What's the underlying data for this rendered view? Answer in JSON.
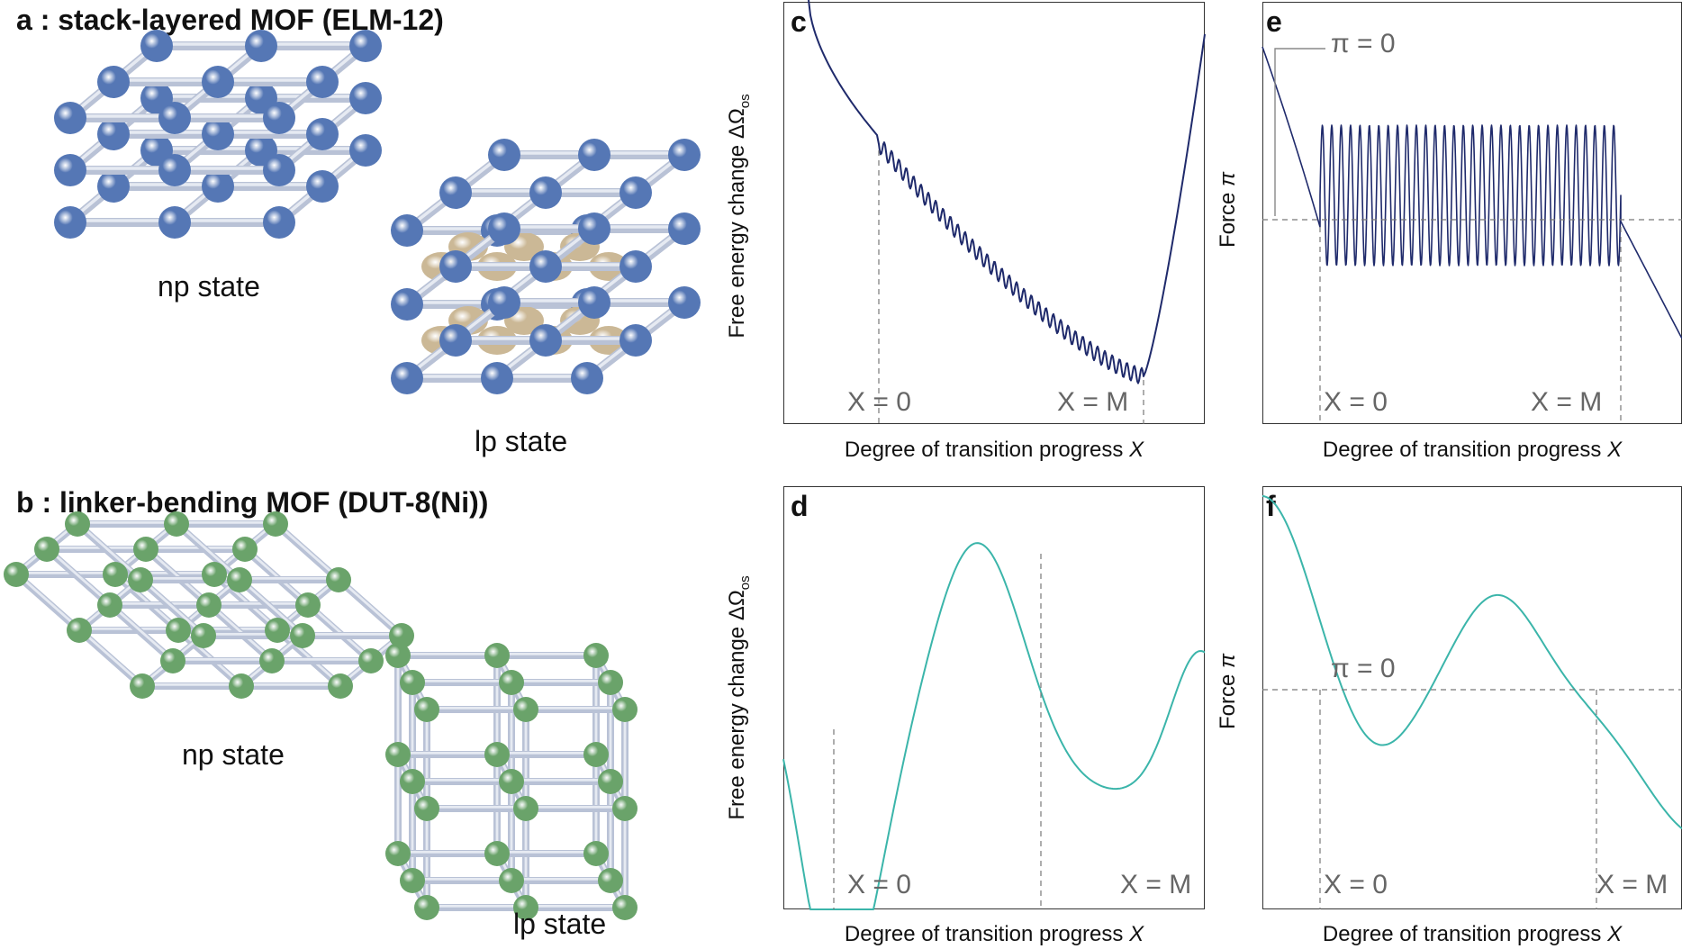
{
  "panel_a": {
    "title": "a : stack-layered MOF (ELM-12)",
    "np_label": "np state",
    "lp_label": "lp state",
    "node_color": "#5577b5",
    "guest_color": "#cbb896"
  },
  "panel_b": {
    "title": "b : linker-bending MOF (DUT-8(Ni))",
    "np_label": "np state",
    "lp_label": "lp state",
    "node_color": "#6aa36a"
  },
  "panels": {
    "c": {
      "letter": "c",
      "ylabel_main": "Free energy change ΔΩ",
      "ylabel_sub": "os",
      "xlabel_main": "Degree of transition progress ",
      "xlabel_var": "X",
      "mark_x0": "X = 0",
      "mark_xm": "X = M",
      "color": "#1f2a6b"
    },
    "e": {
      "letter": "e",
      "ylabel_main": "Force ",
      "ylabel_var": "π",
      "xlabel_main": "Degree of transition progress ",
      "xlabel_var": "X",
      "mark_x0": "X = 0",
      "mark_xm": "X = M",
      "pi_label": "π = 0",
      "color": "#1f2a6b"
    },
    "d": {
      "letter": "d",
      "ylabel_main": "Free energy change ΔΩ",
      "ylabel_sub": "os",
      "xlabel_main": "Degree of transition progress ",
      "xlabel_var": "X",
      "mark_x0": "X = 0",
      "mark_xm": "X = M",
      "color": "#3bb5aa"
    },
    "f": {
      "letter": "f",
      "ylabel_main": "Force ",
      "ylabel_var": "π",
      "xlabel_main": "Degree of transition progress ",
      "xlabel_var": "X",
      "mark_x0": "X = 0",
      "mark_xm": "X = M",
      "pi_label": "π = 0",
      "color": "#3bb5aa"
    }
  }
}
